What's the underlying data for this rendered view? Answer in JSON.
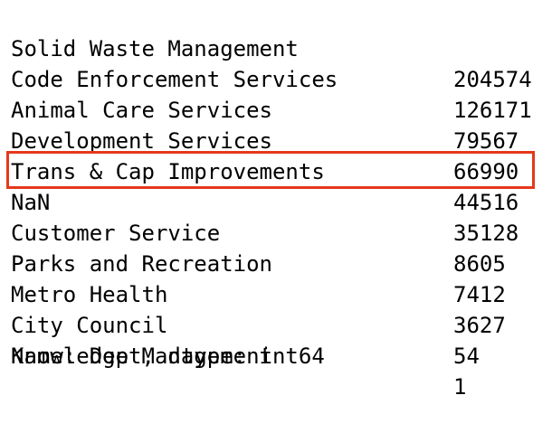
{
  "series_output": {
    "rows": [
      {
        "label": "Solid Waste Management",
        "value": "204574"
      },
      {
        "label": "Code Enforcement Services",
        "value": "126171"
      },
      {
        "label": "Animal Care Services",
        "value": "79567"
      },
      {
        "label": "Development Services",
        "value": "66990"
      },
      {
        "label": "Trans & Cap Improvements",
        "value": "44516"
      },
      {
        "label": "NaN",
        "value": "35128"
      },
      {
        "label": "Customer Service",
        "value": "8605"
      },
      {
        "label": "Parks and Recreation",
        "value": "7412"
      },
      {
        "label": "Metro Health",
        "value": "3627"
      },
      {
        "label": "City Council",
        "value": "54"
      },
      {
        "label": "Knowledge Management",
        "value": "1"
      }
    ],
    "footer": "Name: Dept, dtype: int64",
    "highlight_color": "#e4391b"
  }
}
